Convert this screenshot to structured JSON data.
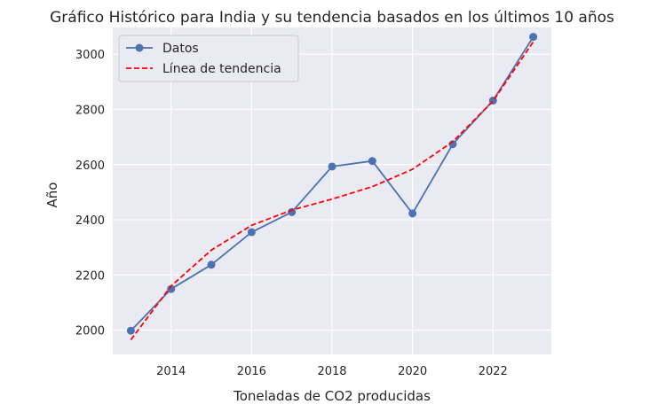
{
  "chart_data": {
    "type": "line",
    "title": "Gráfico Histórico para India y su tendencia basados en los últimos 10 años",
    "xlabel": "Toneladas de CO2 producidas",
    "ylabel": "Año",
    "xlim": [
      2012.55,
      2023.45
    ],
    "ylim": [
      1912,
      3097
    ],
    "x_ticks": [
      2014,
      2016,
      2018,
      2020,
      2022
    ],
    "y_ticks": [
      2000,
      2200,
      2400,
      2600,
      2800,
      3000
    ],
    "grid": true,
    "legend_position": "top-left",
    "series": [
      {
        "name": "Datos",
        "style": "solid-with-markers",
        "color": "#4c72b0",
        "x": [
          2013,
          2014,
          2015,
          2016,
          2017,
          2018,
          2019,
          2020,
          2021,
          2022,
          2023
        ],
        "y": [
          1998,
          2149,
          2237,
          2355,
          2428,
          2593,
          2613,
          2423,
          2674,
          2832,
          3063
        ]
      },
      {
        "name": "Línea de tendencia",
        "style": "dashed",
        "color": "#ff0000",
        "x": [
          2013,
          2014,
          2015,
          2016,
          2017,
          2018,
          2019,
          2020,
          2021,
          2022,
          2023
        ],
        "y": [
          1965,
          2160,
          2290,
          2380,
          2435,
          2475,
          2520,
          2583,
          2683,
          2830,
          3045
        ]
      }
    ]
  }
}
